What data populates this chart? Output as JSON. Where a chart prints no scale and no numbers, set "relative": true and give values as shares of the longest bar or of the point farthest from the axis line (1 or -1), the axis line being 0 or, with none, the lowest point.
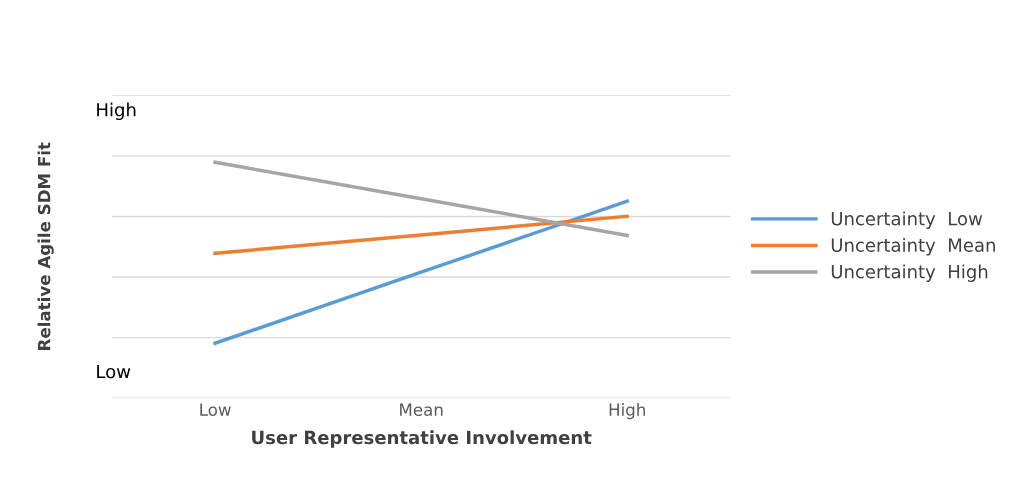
{
  "chart_data": {
    "type": "line",
    "relative": true,
    "xlabel": "User Representative Involvement",
    "ylabel": "Relative Agile SDM Fit",
    "categories": [
      "Low",
      "Mean",
      "High"
    ],
    "series": [
      {
        "name": "Uncertainty  Low",
        "color": "#5b9bd5",
        "values": [
          0.233,
          0.534,
          0.835
        ]
      },
      {
        "name": "Uncertainty  Mean",
        "color": "#ed7d31",
        "values": [
          0.614,
          0.692,
          0.771
        ]
      },
      {
        "name": "Uncertainty  High",
        "color": "#a5a5a5",
        "values": [
          1.0,
          0.845,
          0.69
        ]
      }
    ],
    "annotations": [
      "High",
      "Low"
    ],
    "grid": "y",
    "legend": "right",
    "marker": "none",
    "line_style": "solid"
  }
}
